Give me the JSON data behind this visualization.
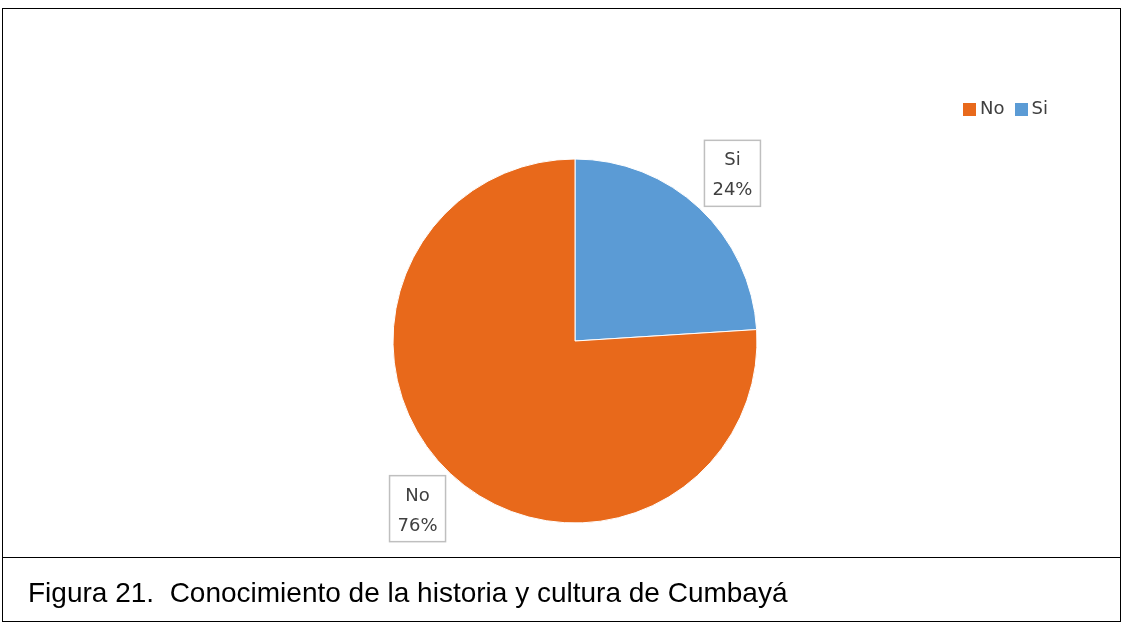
{
  "chart_data": {
    "type": "pie",
    "categories": [
      "Si",
      "No"
    ],
    "values": [
      24,
      76
    ],
    "colors": [
      "#5b9bd5",
      "#e8691b"
    ],
    "value_labels": [
      "24%",
      "76%"
    ],
    "legend": "top right",
    "annotations": [
      "Figura 21.  Conocimiento de la historia y cultura de Cumbayá"
    ]
  }
}
